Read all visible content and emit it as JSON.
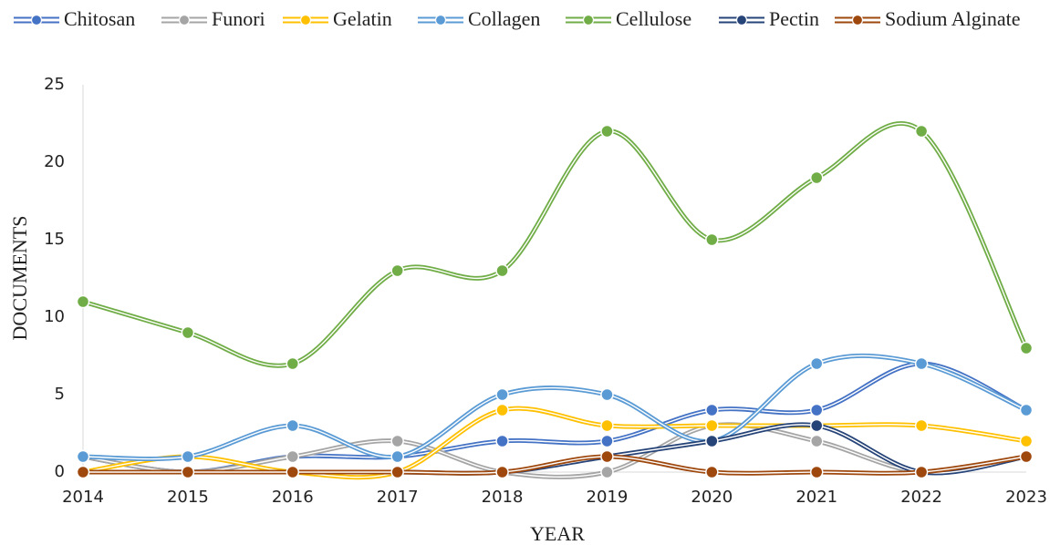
{
  "chart_data": {
    "type": "line",
    "x": [
      2014,
      2015,
      2016,
      2017,
      2018,
      2019,
      2020,
      2021,
      2022,
      2023
    ],
    "xlim": [
      2014,
      2023
    ],
    "xticks": [
      2014,
      2015,
      2016,
      2017,
      2018,
      2019,
      2020,
      2021,
      2022,
      2023
    ],
    "ylim": [
      0,
      25
    ],
    "yticks": [
      0,
      5,
      10,
      15,
      20,
      25
    ],
    "x_label": "YEAR",
    "y_label": "DOCUMENTS",
    "grid": false,
    "legend": "top",
    "smooth": true,
    "series": [
      {
        "name": "Chitosan",
        "color": "#4472c4",
        "values": [
          1,
          0,
          1,
          1,
          2,
          2,
          4,
          4,
          7,
          4
        ]
      },
      {
        "name": "Funori",
        "color": "#a5a5a5",
        "values": [
          1,
          0,
          1,
          2,
          0,
          0,
          3,
          2,
          0,
          1
        ]
      },
      {
        "name": "Gelatin",
        "color": "#ffc000",
        "values": [
          0,
          1,
          0,
          0,
          4,
          3,
          3,
          3,
          3,
          2
        ]
      },
      {
        "name": "Collagen",
        "color": "#5b9bd5",
        "values": [
          1,
          1,
          3,
          1,
          5,
          5,
          2,
          7,
          7,
          4
        ]
      },
      {
        "name": "Cellulose",
        "color": "#70ad47",
        "values": [
          11,
          9,
          7,
          13,
          13,
          22,
          15,
          19,
          22,
          8
        ]
      },
      {
        "name": "Pectin",
        "color": "#264478",
        "values": [
          0,
          0,
          0,
          0,
          0,
          1,
          2,
          3,
          0,
          1
        ]
      },
      {
        "name": "Sodium Alginate",
        "color": "#9e480e",
        "values": [
          0,
          0,
          0,
          0,
          0,
          1,
          0,
          0,
          0,
          1
        ]
      }
    ]
  }
}
